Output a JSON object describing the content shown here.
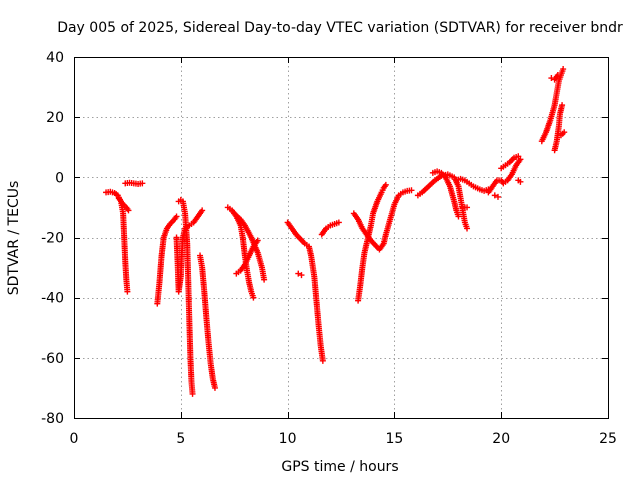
{
  "chart_data": {
    "type": "scatter",
    "title": "Day 005 of 2025, Sidereal Day-to-day VTEC variation (SDTVAR) for receiver bndr",
    "xlabel": "GPS time / hours",
    "ylabel": "SDTVAR / TECUs",
    "xlim": [
      0,
      25
    ],
    "ylim": [
      -80,
      40
    ],
    "xticks": [
      0,
      5,
      10,
      15,
      20,
      25
    ],
    "yticks": [
      -80,
      -60,
      -40,
      -20,
      0,
      20,
      40
    ],
    "xtick_labels": [
      "0",
      "5",
      "10",
      "15",
      "20",
      "25"
    ],
    "ytick_labels": [
      "-80",
      "-60",
      "-40",
      "-20",
      "0",
      "20",
      "40"
    ],
    "grid": true,
    "marker": "+",
    "color": "#ff0000",
    "series": [
      {
        "name": "s1",
        "points": [
          [
            1.5,
            -5
          ],
          [
            1.7,
            -4.8
          ],
          [
            1.9,
            -5.2
          ],
          [
            2.05,
            -6
          ],
          [
            2.2,
            -8
          ],
          [
            2.3,
            -12
          ],
          [
            2.35,
            -20
          ],
          [
            2.4,
            -28
          ],
          [
            2.45,
            -34
          ],
          [
            2.5,
            -38
          ]
        ]
      },
      {
        "name": "s1b",
        "points": [
          [
            2.1,
            -7
          ],
          [
            2.3,
            -9
          ],
          [
            2.45,
            -10
          ],
          [
            2.55,
            -11
          ]
        ]
      },
      {
        "name": "s2",
        "points": [
          [
            2.4,
            -2
          ],
          [
            2.6,
            -1.8
          ],
          [
            2.8,
            -2
          ],
          [
            3.0,
            -2.2
          ],
          [
            3.2,
            -2
          ]
        ]
      },
      {
        "name": "s3",
        "points": [
          [
            3.9,
            -42
          ],
          [
            4.0,
            -35
          ],
          [
            4.1,
            -26
          ],
          [
            4.2,
            -20
          ],
          [
            4.35,
            -17
          ],
          [
            4.5,
            -15.5
          ],
          [
            4.7,
            -14
          ],
          [
            4.8,
            -13
          ]
        ]
      },
      {
        "name": "s4",
        "points": [
          [
            4.9,
            -8
          ],
          [
            5.0,
            -7.5
          ],
          [
            5.1,
            -8
          ],
          [
            5.2,
            -12
          ],
          [
            5.3,
            -22
          ],
          [
            5.35,
            -35
          ],
          [
            5.4,
            -48
          ],
          [
            5.45,
            -60
          ],
          [
            5.5,
            -68
          ],
          [
            5.55,
            -72
          ]
        ]
      },
      {
        "name": "s5",
        "points": [
          [
            4.8,
            -20
          ],
          [
            4.85,
            -28
          ],
          [
            4.9,
            -38
          ],
          [
            5.0,
            -33
          ],
          [
            5.05,
            -25
          ],
          [
            5.1,
            -20
          ],
          [
            5.2,
            -17
          ],
          [
            5.4,
            -16
          ],
          [
            5.6,
            -15
          ],
          [
            5.8,
            -13
          ],
          [
            6.0,
            -11
          ]
        ]
      },
      {
        "name": "s6",
        "points": [
          [
            5.9,
            -26
          ],
          [
            6.0,
            -30
          ],
          [
            6.1,
            -38
          ],
          [
            6.2,
            -47
          ],
          [
            6.3,
            -55
          ],
          [
            6.4,
            -62
          ],
          [
            6.5,
            -67
          ],
          [
            6.6,
            -70
          ]
        ]
      },
      {
        "name": "s7",
        "points": [
          [
            7.2,
            -10
          ],
          [
            7.4,
            -11
          ],
          [
            7.6,
            -13
          ],
          [
            7.8,
            -16
          ],
          [
            7.9,
            -20
          ],
          [
            8.0,
            -26
          ],
          [
            8.1,
            -31
          ],
          [
            8.2,
            -35
          ],
          [
            8.3,
            -38
          ],
          [
            8.4,
            -40
          ]
        ]
      },
      {
        "name": "s8",
        "points": [
          [
            7.6,
            -32
          ],
          [
            7.8,
            -31
          ],
          [
            8.0,
            -29
          ],
          [
            8.2,
            -26
          ],
          [
            8.4,
            -23
          ],
          [
            8.6,
            -21
          ]
        ]
      },
      {
        "name": "s9",
        "points": [
          [
            7.5,
            -12
          ],
          [
            7.8,
            -14
          ],
          [
            8.0,
            -16
          ],
          [
            8.3,
            -20
          ],
          [
            8.6,
            -25
          ],
          [
            8.8,
            -30
          ],
          [
            8.9,
            -34
          ]
        ]
      },
      {
        "name": "s10",
        "points": [
          [
            10.0,
            -15
          ],
          [
            10.2,
            -17
          ],
          [
            10.4,
            -19
          ],
          [
            10.6,
            -20.5
          ],
          [
            10.8,
            -22
          ],
          [
            11.0,
            -23
          ],
          [
            11.1,
            -26
          ],
          [
            11.25,
            -33
          ],
          [
            11.35,
            -41
          ],
          [
            11.45,
            -49
          ],
          [
            11.55,
            -56
          ],
          [
            11.65,
            -61
          ]
        ]
      },
      {
        "name": "s11",
        "points": [
          [
            10.5,
            -32
          ],
          [
            10.65,
            -32.5
          ]
        ]
      },
      {
        "name": "s12",
        "points": [
          [
            11.6,
            -19
          ],
          [
            11.8,
            -17
          ],
          [
            12.0,
            -16
          ],
          [
            12.2,
            -15.5
          ],
          [
            12.4,
            -15
          ]
        ]
      },
      {
        "name": "s13",
        "points": [
          [
            13.1,
            -12
          ],
          [
            13.3,
            -14
          ],
          [
            13.5,
            -17
          ],
          [
            13.7,
            -19
          ],
          [
            13.9,
            -21
          ],
          [
            14.1,
            -22.5
          ],
          [
            14.3,
            -24
          ],
          [
            14.5,
            -22
          ],
          [
            14.6,
            -19
          ],
          [
            14.8,
            -14
          ],
          [
            15.0,
            -9
          ],
          [
            15.2,
            -6
          ],
          [
            15.4,
            -5
          ],
          [
            15.6,
            -4.5
          ],
          [
            15.8,
            -4.3
          ]
        ]
      },
      {
        "name": "s14",
        "points": [
          [
            13.3,
            -41
          ],
          [
            13.4,
            -36
          ],
          [
            13.5,
            -30
          ],
          [
            13.6,
            -25
          ],
          [
            13.7,
            -22
          ],
          [
            13.8,
            -19
          ],
          [
            13.9,
            -16
          ],
          [
            14.0,
            -12
          ],
          [
            14.2,
            -8
          ],
          [
            14.4,
            -5
          ],
          [
            14.5,
            -3.5
          ],
          [
            14.6,
            -2.5
          ]
        ]
      },
      {
        "name": "s15",
        "points": [
          [
            16.1,
            -6
          ],
          [
            16.3,
            -5
          ],
          [
            16.6,
            -3
          ],
          [
            16.9,
            -1
          ],
          [
            17.2,
            0.5
          ],
          [
            17.5,
            1
          ],
          [
            17.8,
            0
          ],
          [
            18.0,
            -3
          ],
          [
            18.1,
            -7
          ],
          [
            18.2,
            -11
          ],
          [
            18.3,
            -15
          ],
          [
            18.4,
            -17
          ]
        ]
      },
      {
        "name": "s16",
        "points": [
          [
            16.8,
            1.5
          ],
          [
            17.0,
            2
          ],
          [
            17.2,
            1.5
          ],
          [
            17.4,
            0
          ],
          [
            17.6,
            -3
          ],
          [
            17.8,
            -8
          ],
          [
            17.9,
            -11
          ],
          [
            18.0,
            -13
          ]
        ]
      },
      {
        "name": "s17",
        "points": [
          [
            17.9,
            -1
          ],
          [
            18.1,
            -0.5
          ],
          [
            18.3,
            -1
          ],
          [
            18.5,
            -2
          ],
          [
            18.7,
            -3
          ],
          [
            19.0,
            -4
          ],
          [
            19.2,
            -4.5
          ],
          [
            19.4,
            -4
          ]
        ]
      },
      {
        "name": "s18",
        "points": [
          [
            18.2,
            -10
          ],
          [
            18.4,
            -10
          ]
        ]
      },
      {
        "name": "s19",
        "points": [
          [
            19.4,
            -5
          ],
          [
            19.6,
            -3
          ],
          [
            19.8,
            -1
          ],
          [
            20.0,
            -1
          ],
          [
            20.1,
            -2
          ],
          [
            20.3,
            -1
          ],
          [
            20.5,
            1
          ],
          [
            20.7,
            4
          ],
          [
            20.9,
            6
          ]
        ]
      },
      {
        "name": "s20",
        "points": [
          [
            20.0,
            3
          ],
          [
            20.2,
            4
          ],
          [
            20.4,
            5
          ],
          [
            20.6,
            6.5
          ],
          [
            20.8,
            7
          ]
        ]
      },
      {
        "name": "s21",
        "points": [
          [
            19.7,
            -6
          ],
          [
            19.85,
            -6.5
          ]
        ]
      },
      {
        "name": "s22",
        "points": [
          [
            20.8,
            -1
          ],
          [
            20.9,
            -1.5
          ]
        ]
      },
      {
        "name": "s23",
        "points": [
          [
            21.9,
            12
          ],
          [
            22.1,
            15
          ],
          [
            22.3,
            19
          ],
          [
            22.5,
            24
          ],
          [
            22.6,
            28
          ],
          [
            22.7,
            32
          ],
          [
            22.8,
            34
          ],
          [
            22.9,
            36
          ]
        ]
      },
      {
        "name": "s24",
        "points": [
          [
            22.35,
            33
          ],
          [
            22.5,
            32.5
          ],
          [
            22.65,
            34
          ]
        ]
      },
      {
        "name": "s25",
        "points": [
          [
            22.5,
            9
          ],
          [
            22.6,
            12
          ],
          [
            22.7,
            17
          ],
          [
            22.75,
            21
          ],
          [
            22.85,
            24
          ]
        ]
      },
      {
        "name": "s26",
        "points": [
          [
            22.8,
            14
          ],
          [
            22.95,
            15
          ]
        ]
      }
    ]
  }
}
